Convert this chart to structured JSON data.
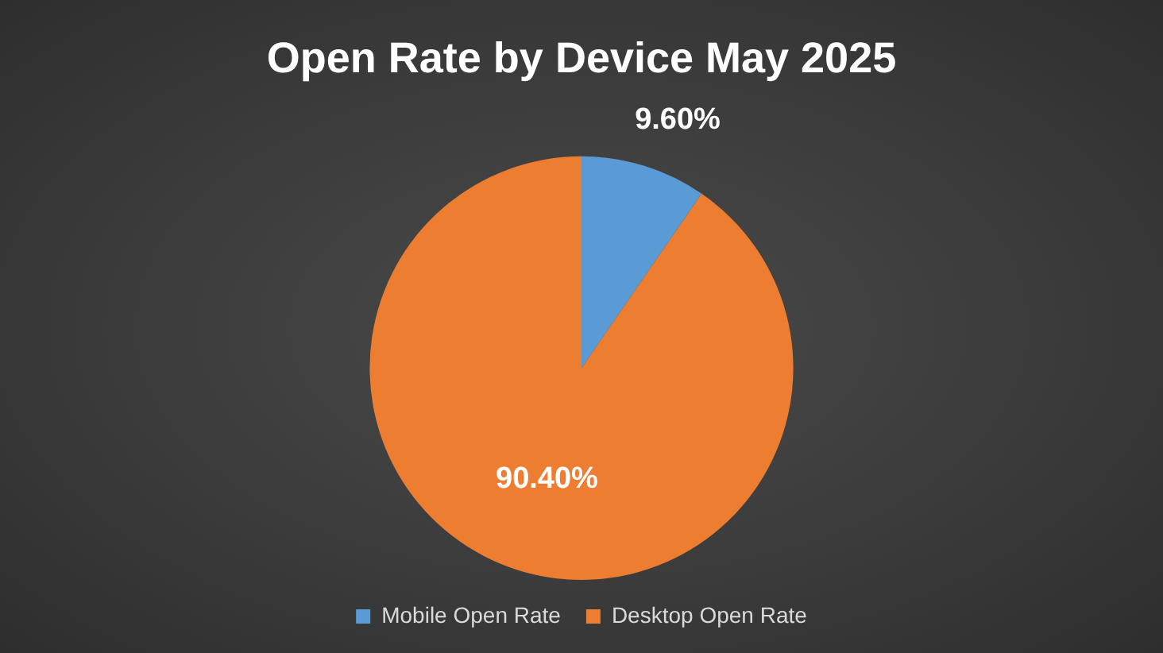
{
  "chart_data": {
    "type": "pie",
    "title": "Open Rate by Device May 2025",
    "categories": [
      "Mobile Open Rate",
      "Desktop Open Rate"
    ],
    "values": [
      9.6,
      90.4
    ],
    "colors": [
      "#5b9bd5",
      "#ed7d31"
    ],
    "value_labels": [
      "9.60%",
      "90.40%"
    ],
    "legend": "bottom"
  }
}
